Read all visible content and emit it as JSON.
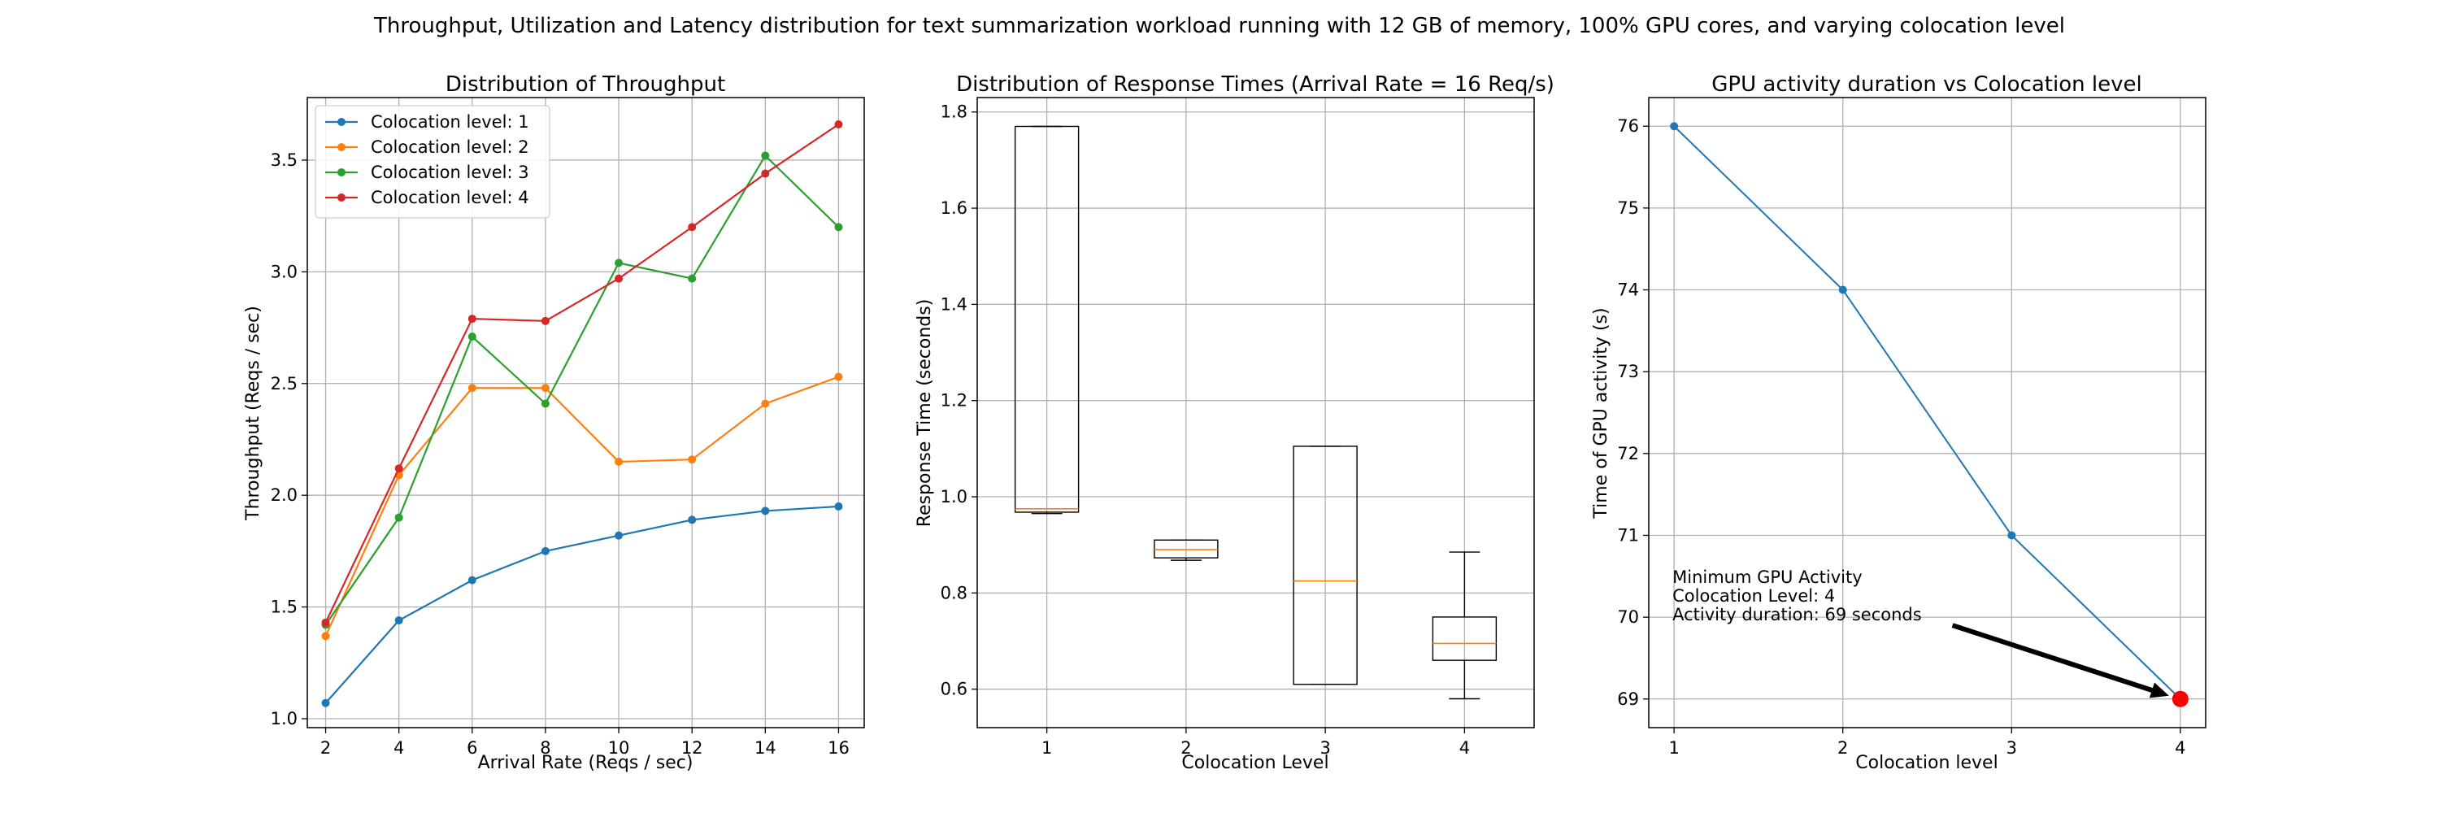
{
  "figure_title": "Throughput, Utilization and Latency distribution for text summarization workload running with 12 GB of memory, 100% GPU cores, and varying colocation level",
  "colors": {
    "c1": "#1f77b4",
    "c2": "#ff7f0e",
    "c3": "#2ca02c",
    "c4": "#d62728",
    "grid": "#b0b0b0",
    "median": "#ff7f0e",
    "highlight": "#ff0000",
    "arrow": "#000000"
  },
  "chart_data": [
    {
      "type": "line",
      "title": "Distribution of Throughput",
      "xlabel": "Arrival Rate (Reqs / sec)",
      "ylabel": "Throughput (Reqs / sec)",
      "xlim": [
        1.5,
        16.7
      ],
      "ylim": [
        0.96,
        3.78
      ],
      "xticks": [
        2,
        4,
        6,
        8,
        10,
        12,
        14,
        16
      ],
      "yticks": [
        1.0,
        1.5,
        2.0,
        2.5,
        3.0,
        3.5
      ],
      "grid": true,
      "legend": "top-left",
      "x": [
        2,
        4,
        6,
        8,
        10,
        12,
        14,
        16
      ],
      "series": [
        {
          "name": "Colocation level: 1",
          "values": [
            1.07,
            1.44,
            1.62,
            1.75,
            1.82,
            1.89,
            1.93,
            1.95
          ]
        },
        {
          "name": "Colocation level: 2",
          "values": [
            1.37,
            2.09,
            2.48,
            2.48,
            2.15,
            2.16,
            2.41,
            2.53
          ]
        },
        {
          "name": "Colocation level: 3",
          "values": [
            1.42,
            1.9,
            2.71,
            2.41,
            3.04,
            2.97,
            3.52,
            3.2
          ]
        },
        {
          "name": "Colocation level: 4",
          "values": [
            1.43,
            2.12,
            2.79,
            2.78,
            2.97,
            3.2,
            3.44,
            3.66
          ]
        }
      ]
    },
    {
      "type": "box",
      "title": "Distribution of Response Times (Arrival Rate = 16 Req/s)",
      "xlabel": "Colocation Level",
      "ylabel": "Response Time (seconds)",
      "xlim": [
        0.5,
        4.5
      ],
      "ylim": [
        0.52,
        1.83
      ],
      "yticks": [
        0.6,
        0.8,
        1.0,
        1.2,
        1.4,
        1.6,
        1.8
      ],
      "grid": true,
      "categories": [
        "1",
        "2",
        "3",
        "4"
      ],
      "boxes": [
        {
          "whisker_low": 0.965,
          "q1": 0.968,
          "median": 0.975,
          "q3": 1.77,
          "whisker_high": 1.77
        },
        {
          "whisker_low": 0.868,
          "q1": 0.873,
          "median": 0.89,
          "q3": 0.91,
          "whisker_high": 0.91
        },
        {
          "whisker_low": 0.61,
          "q1": 0.61,
          "median": 0.825,
          "q3": 1.105,
          "whisker_high": 1.105
        },
        {
          "whisker_low": 0.58,
          "q1": 0.66,
          "median": 0.695,
          "q3": 0.75,
          "whisker_high": 0.885
        }
      ]
    },
    {
      "type": "line",
      "title": "GPU activity duration vs Colocation level",
      "xlabel": "Colocation level",
      "ylabel": "Time of GPU activity (s)",
      "xlim": [
        0.85,
        4.15
      ],
      "ylim": [
        68.65,
        76.35
      ],
      "xticks": [
        1,
        2,
        3,
        4
      ],
      "yticks": [
        69,
        70,
        71,
        72,
        73,
        74,
        75,
        76
      ],
      "grid": true,
      "x": [
        1,
        2,
        3,
        4
      ],
      "values": [
        76,
        74,
        71,
        69
      ],
      "highlight_point": {
        "x": 4,
        "y": 69
      },
      "annotation": {
        "lines": [
          "Minimum GPU Activity",
          "Colocation Level: 4",
          "Activity duration: 69 seconds"
        ],
        "arrow_from": {
          "x": 2.65,
          "y": 69.9
        },
        "arrow_to": {
          "x": 4,
          "y": 69
        }
      }
    }
  ]
}
